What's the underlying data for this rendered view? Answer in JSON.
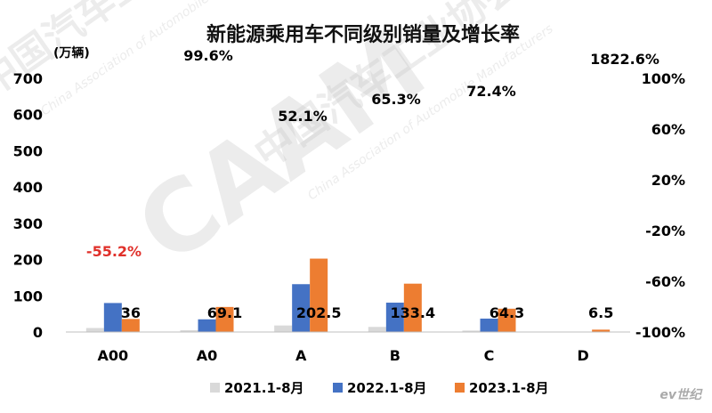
{
  "chart_data": {
    "type": "bar",
    "title": "新能源乘用车不同级别销量及增长率",
    "y_unit_label": "(万辆)",
    "categories": [
      "A00",
      "A0",
      "A",
      "B",
      "C",
      "D"
    ],
    "series": [
      {
        "name": "2021.1-8月",
        "color": "#d9d9d9",
        "values": [
          11,
          5,
          18,
          14,
          4,
          0
        ]
      },
      {
        "name": "2022.1-8月",
        "color": "#4472c4",
        "values": [
          80,
          35,
          132,
          81,
          37,
          0.3
        ]
      },
      {
        "name": "2023.1-8月",
        "color": "#ed7d31",
        "values": [
          36,
          69.1,
          202.5,
          133.4,
          64.3,
          6.5
        ]
      }
    ],
    "value_labels": [
      "36",
      "69.1",
      "202.5",
      "133.4",
      "64.3",
      "6.5"
    ],
    "growth_labels": [
      "-55.2%",
      "99.6%",
      "52.1%",
      "65.3%",
      "72.4%",
      "1822.6%"
    ],
    "ylim": [
      0,
      700
    ],
    "y_ticks": [
      "0",
      "100",
      "200",
      "300",
      "400",
      "500",
      "600",
      "700"
    ],
    "y2_ticks": [
      "-100%",
      "-60%",
      "-20%",
      "20%",
      "60%",
      "100%"
    ],
    "legend_position": "bottom",
    "grid": false
  },
  "watermark": {
    "logo_text": "CAAM",
    "org_cn": "中国汽车工业协会",
    "org_en": "China Association of Automobile Manufacturers"
  },
  "brand": "ev世纪"
}
